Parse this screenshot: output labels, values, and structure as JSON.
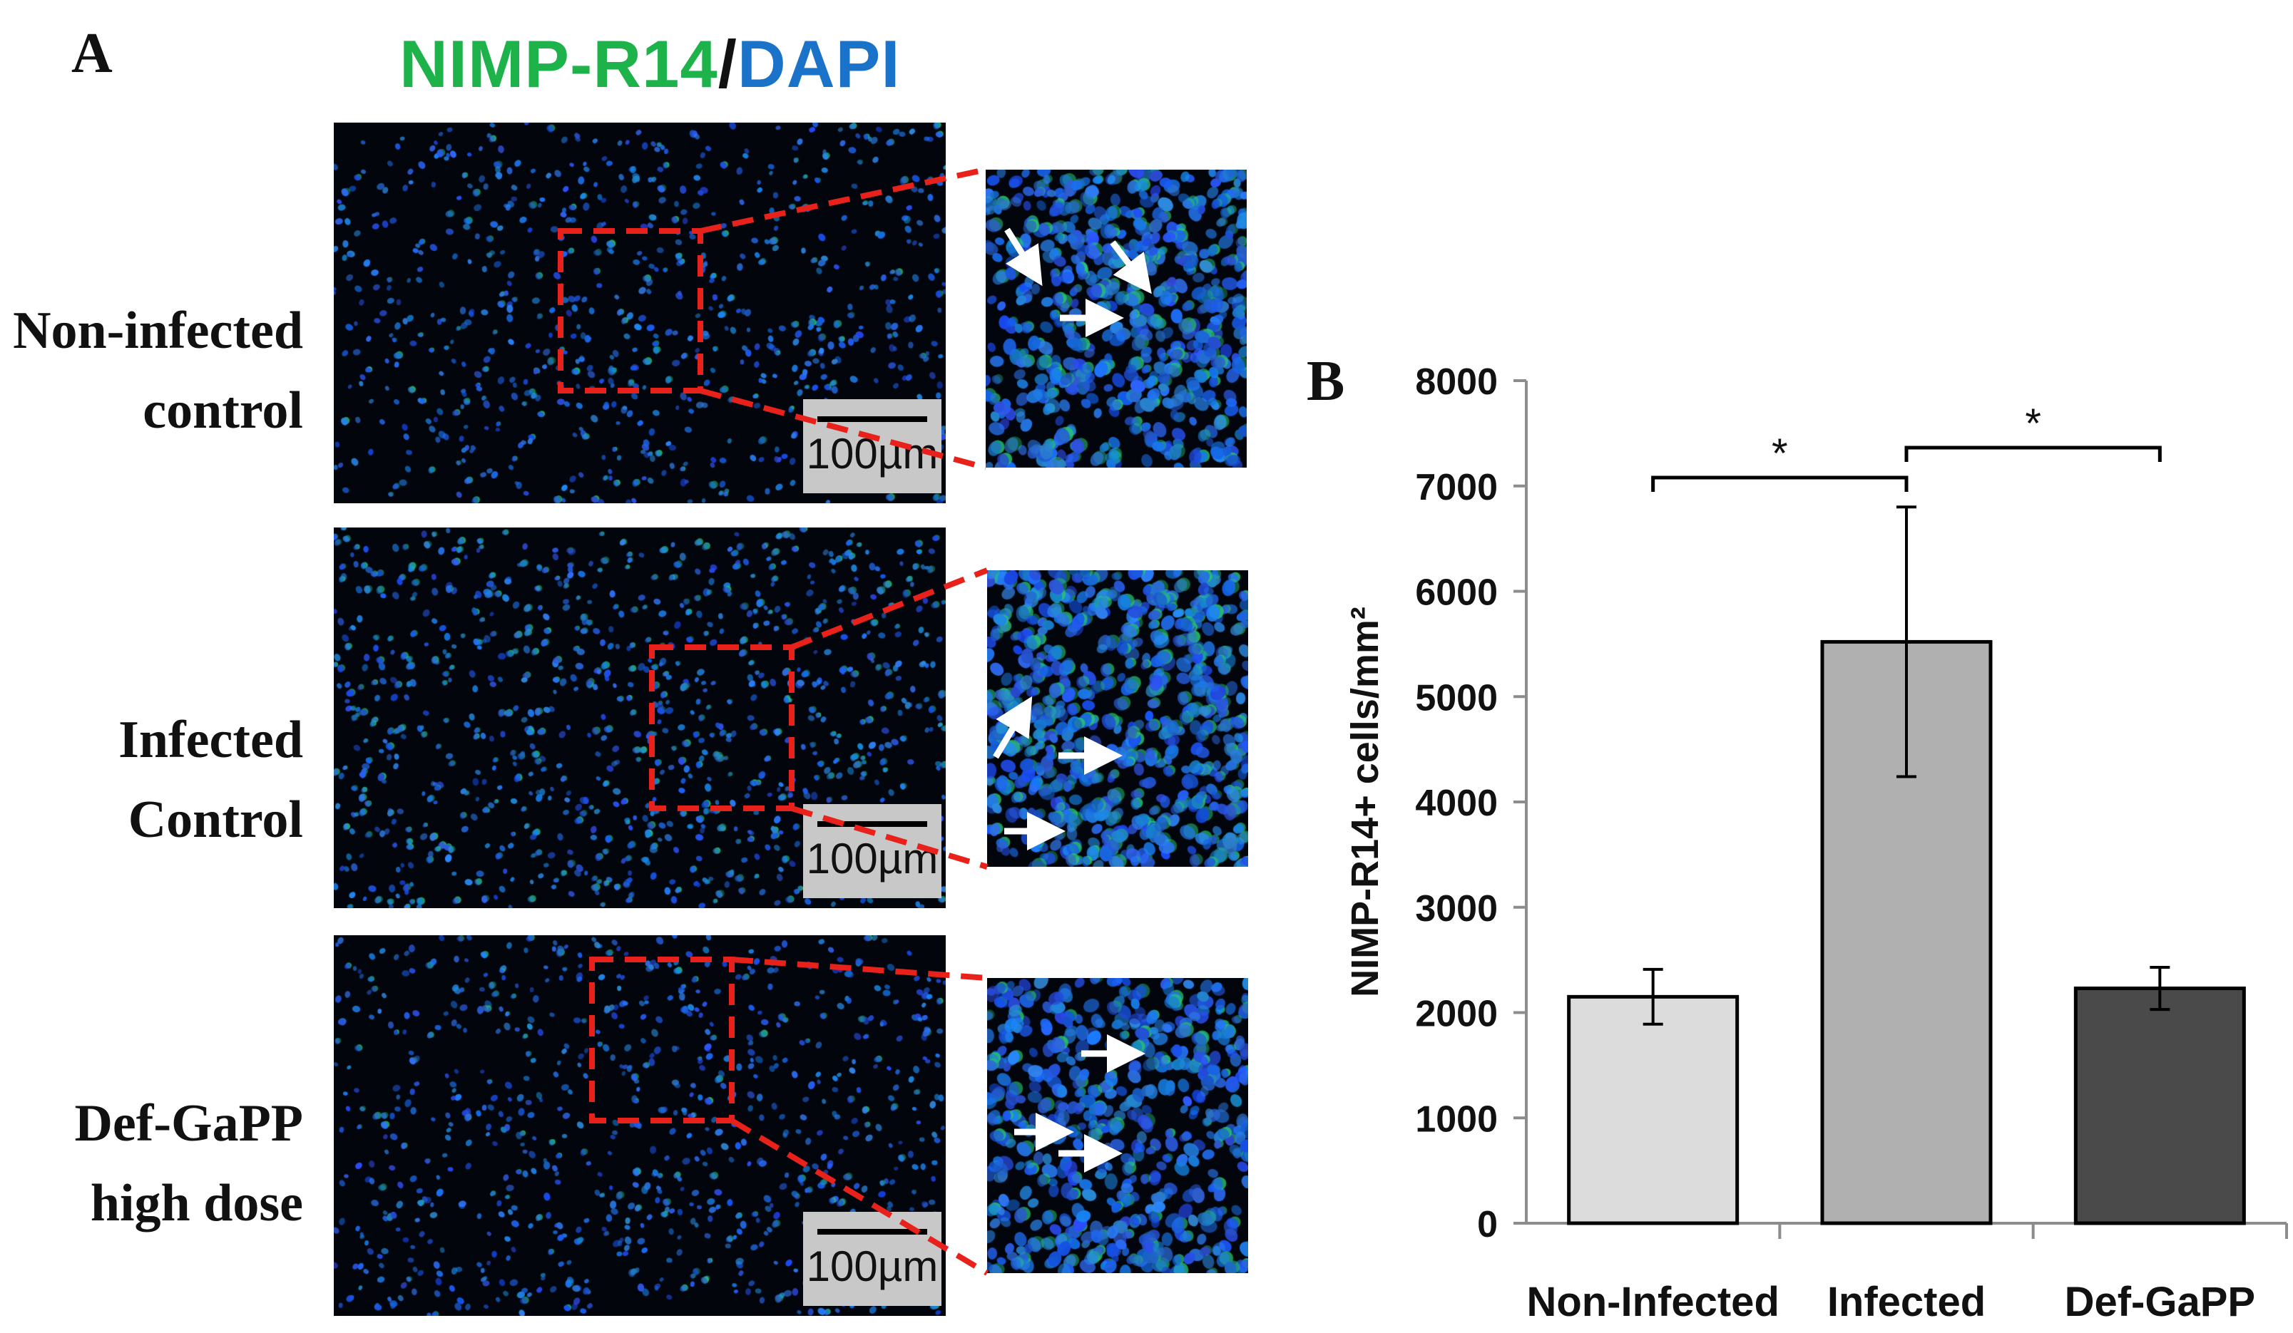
{
  "panel_a": {
    "letter": "A",
    "title_marker": "NIMP-R14",
    "title_sep": "/",
    "title_stain": "DAPI",
    "marker_color": "#1db34a",
    "stain_color": "#1a73c9",
    "rows": [
      {
        "label_line1": "Non-infected",
        "label_line2": "control",
        "scale": "100µm"
      },
      {
        "label_line1": "Infected",
        "label_line2": "Control",
        "scale": "100µm"
      },
      {
        "label_line1": "Def-GaPP",
        "label_line2": "high dose",
        "scale": "100µm"
      }
    ]
  },
  "panel_b": {
    "letter": "B"
  },
  "chart_data": {
    "type": "bar",
    "categories": [
      "Non-Infected",
      "Infected",
      "Def-GaPP"
    ],
    "values": [
      2150,
      5520,
      2230
    ],
    "errors": [
      260,
      1280,
      200
    ],
    "bar_colors": [
      "#dcdcdc",
      "#b0b0b0",
      "#4a4a4a"
    ],
    "ylabel": "NIMP-R14+ cells/mm²",
    "ylim": [
      0,
      8000
    ],
    "yticks": [
      0,
      1000,
      2000,
      3000,
      4000,
      5000,
      6000,
      7000,
      8000
    ],
    "significance": [
      {
        "from": "Non-Infected",
        "to": "Infected",
        "label": "*"
      },
      {
        "from": "Infected",
        "to": "Def-GaPP",
        "label": "*"
      }
    ],
    "grid": false,
    "legend": "none"
  }
}
